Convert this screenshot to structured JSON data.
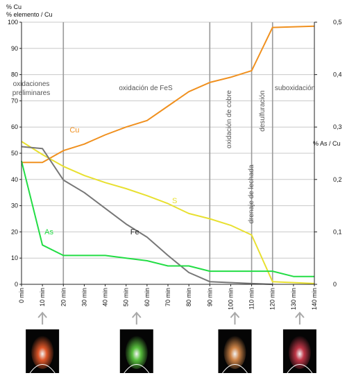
{
  "chart_data": {
    "type": "line",
    "left_axis_title": [
      "% Cu",
      "% elemento / Cu"
    ],
    "right_axis_title": "% As / Cu",
    "x_ticks": [
      "0 min",
      "10 min",
      "20 min",
      "30 min",
      "40 min",
      "50 min",
      "60 min",
      "70 min",
      "80 min",
      "90 min",
      "100 min",
      "110 min",
      "120 min",
      "130 min",
      "140 min"
    ],
    "xlim": [
      0,
      140
    ],
    "ylim_left": [
      0,
      100
    ],
    "yticks_left": [
      "0",
      "10",
      "20",
      "30",
      "40",
      "50",
      "60",
      "70",
      "80",
      "90",
      "100"
    ],
    "ylim_right": [
      0,
      0.5
    ],
    "yticks_right": [
      "0",
      "0,1",
      "0,2",
      "0,3",
      "0,4",
      "0,5"
    ],
    "grid": true,
    "phase_boundaries": [
      20,
      90,
      110,
      120
    ],
    "phases": [
      {
        "lines": [
          "oxidaciones",
          "preliminares"
        ],
        "orientation": "horizontal"
      },
      {
        "lines": [
          "oxidación de FeS"
        ],
        "orientation": "horizontal"
      },
      {
        "lines": [
          "oxidación de cobre"
        ],
        "orientation": "vertical"
      },
      {
        "lines": [
          "desulfuración"
        ],
        "orientation": "vertical"
      },
      {
        "lines": [
          "drenaje de lechada"
        ],
        "orientation": "vertical"
      },
      {
        "lines": [
          "suboxidación"
        ],
        "orientation": "horizontal"
      }
    ],
    "series": [
      {
        "name": "Cu",
        "color": "#f0901e",
        "axis": "left",
        "x": [
          0,
          10,
          20,
          30,
          40,
          50,
          60,
          70,
          80,
          90,
          100,
          110,
          120,
          140
        ],
        "y": [
          46.5,
          46.5,
          51,
          53.5,
          57,
          60,
          62.5,
          68,
          73.5,
          77,
          79,
          81.5,
          98,
          98.5
        ]
      },
      {
        "name": "S",
        "color": "#e8e030",
        "axis": "left",
        "x": [
          0,
          10,
          20,
          30,
          40,
          50,
          60,
          70,
          80,
          90,
          100,
          110,
          120,
          140
        ],
        "y": [
          54.5,
          49.5,
          45,
          41.5,
          38.8,
          36.5,
          33.8,
          30.8,
          27,
          25,
          22.5,
          18.8,
          1,
          0.3
        ]
      },
      {
        "name": "Fe",
        "color": "#777777",
        "axis": "left",
        "x": [
          0,
          10,
          20,
          30,
          40,
          50,
          60,
          70,
          80,
          90,
          110,
          120
        ],
        "y": [
          52.5,
          51.8,
          39.8,
          35,
          29,
          23,
          18,
          11,
          4.5,
          1,
          0.3,
          0
        ]
      },
      {
        "name": "As",
        "color": "#22dd44",
        "axis": "right",
        "x": [
          0,
          10,
          20,
          40,
          50,
          60,
          70,
          80,
          90,
          120,
          130,
          140
        ],
        "y": [
          0.235,
          0.075,
          0.055,
          0.055,
          0.05,
          0.045,
          0.035,
          0.035,
          0.025,
          0.025,
          0.015,
          0.015
        ]
      }
    ],
    "series_labels": [
      {
        "name": "Cu",
        "x": 23,
        "y": 58
      },
      {
        "name": "S",
        "x": 72,
        "y": 31
      },
      {
        "name": "Fe",
        "x": 52,
        "y": 19
      },
      {
        "name": "As",
        "x": 11,
        "y": 0.095
      }
    ],
    "flame_photos": [
      {
        "time": 10,
        "tint": "#e85a2a",
        "icon": "flame-photo-orange"
      },
      {
        "time": 55,
        "tint": "#5cc840",
        "icon": "flame-photo-green"
      },
      {
        "time": 102,
        "tint": "#d88a4a",
        "icon": "flame-photo-white-orange"
      },
      {
        "time": 133,
        "tint": "#c8384a",
        "icon": "flame-photo-red"
      }
    ]
  }
}
